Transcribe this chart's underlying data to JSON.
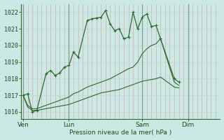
{
  "bg_color": "#cce8e4",
  "grid_color_v": "#d4a0a0",
  "grid_color_h": "#b8d8d4",
  "line_color": "#2d6b2d",
  "xlabel": "Pression niveau de la mer( hPa )",
  "yticks": [
    1016,
    1017,
    1018,
    1019,
    1020,
    1021,
    1022
  ],
  "ylim": [
    1015.6,
    1022.5
  ],
  "xtick_labels": [
    "Ven",
    "Lun",
    "Sam",
    "Dim"
  ],
  "xtick_positions": [
    0,
    10,
    26,
    36
  ],
  "vline_positions": [
    0,
    10,
    26,
    36
  ],
  "xlim": [
    -0.5,
    43
  ],
  "line1_x": [
    0,
    1,
    2,
    3,
    5,
    6,
    7,
    8,
    9,
    10,
    11,
    12,
    14,
    15,
    16,
    17,
    18,
    19,
    20,
    21,
    22,
    23,
    24,
    25,
    26,
    27,
    28,
    29,
    30,
    33,
    34
  ],
  "line1_y": [
    1017.0,
    1017.1,
    1016.0,
    1016.1,
    1018.3,
    1018.5,
    1018.2,
    1018.35,
    1018.7,
    1018.8,
    1019.6,
    1019.3,
    1021.5,
    1021.6,
    1021.65,
    1021.7,
    1022.1,
    1021.3,
    1020.9,
    1021.0,
    1020.4,
    1020.5,
    1022.0,
    1021.0,
    1021.7,
    1021.9,
    1021.15,
    1021.2,
    1020.4,
    1018.0,
    1017.8
  ],
  "line2_full_x": [
    0,
    1,
    2,
    3,
    4,
    5,
    6,
    7,
    8,
    9,
    10,
    11,
    12,
    13,
    14,
    15,
    16,
    17,
    18,
    19,
    20,
    21,
    22,
    23,
    24,
    25,
    26,
    27,
    28,
    29,
    30,
    33,
    34
  ],
  "line2_full_y": [
    1017.0,
    1016.4,
    1016.2,
    1016.2,
    1016.3,
    1016.4,
    1016.5,
    1016.6,
    1016.7,
    1016.8,
    1016.9,
    1017.1,
    1017.2,
    1017.35,
    1017.5,
    1017.6,
    1017.7,
    1017.8,
    1017.9,
    1018.0,
    1018.15,
    1018.3,
    1018.45,
    1018.6,
    1018.7,
    1019.0,
    1019.5,
    1019.8,
    1020.0,
    1020.1,
    1020.4,
    1017.8,
    1017.6
  ],
  "line3_full_x": [
    0,
    1,
    2,
    3,
    4,
    5,
    6,
    7,
    8,
    9,
    10,
    11,
    12,
    13,
    14,
    15,
    16,
    17,
    18,
    19,
    20,
    21,
    22,
    23,
    24,
    25,
    26,
    27,
    28,
    29,
    30,
    33,
    34
  ],
  "line3_full_y": [
    1017.0,
    1016.3,
    1016.1,
    1016.1,
    1016.15,
    1016.2,
    1016.25,
    1016.3,
    1016.35,
    1016.4,
    1016.45,
    1016.55,
    1016.65,
    1016.75,
    1016.85,
    1016.95,
    1017.05,
    1017.15,
    1017.2,
    1017.25,
    1017.3,
    1017.35,
    1017.45,
    1017.55,
    1017.65,
    1017.75,
    1017.85,
    1017.9,
    1017.95,
    1018.0,
    1018.1,
    1017.5,
    1017.45
  ]
}
